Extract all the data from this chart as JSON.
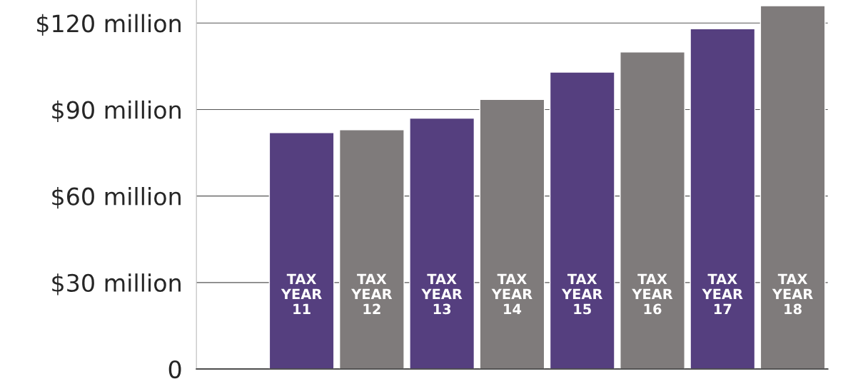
{
  "chart_data": {
    "type": "bar",
    "categories": [
      "TAX\nYEAR\n11",
      "TAX\nYEAR\n12",
      "TAX\nYEAR\n13",
      "TAX\nYEAR\n14",
      "TAX\nYEAR\n15",
      "TAX\nYEAR\n16",
      "TAX\nYEAR\n17",
      "TAX\nYEAR\n18"
    ],
    "values": [
      82,
      83,
      87,
      93.5,
      103,
      110,
      118,
      126
    ],
    "colors": [
      "#553f7f",
      "#7f7b7b",
      "#553f7f",
      "#7f7b7b",
      "#553f7f",
      "#7f7b7b",
      "#553f7f",
      "#7f7b7b"
    ],
    "ylim": [
      0,
      128
    ],
    "yticks": [
      0,
      {
        "value": 30,
        "label": "$30 million"
      },
      {
        "value": 60,
        "label": "$60 million"
      },
      {
        "value": 90,
        "label": "$90 million"
      },
      {
        "value": 120,
        "label": "$120 million"
      }
    ],
    "grid": "y",
    "legend": false
  }
}
